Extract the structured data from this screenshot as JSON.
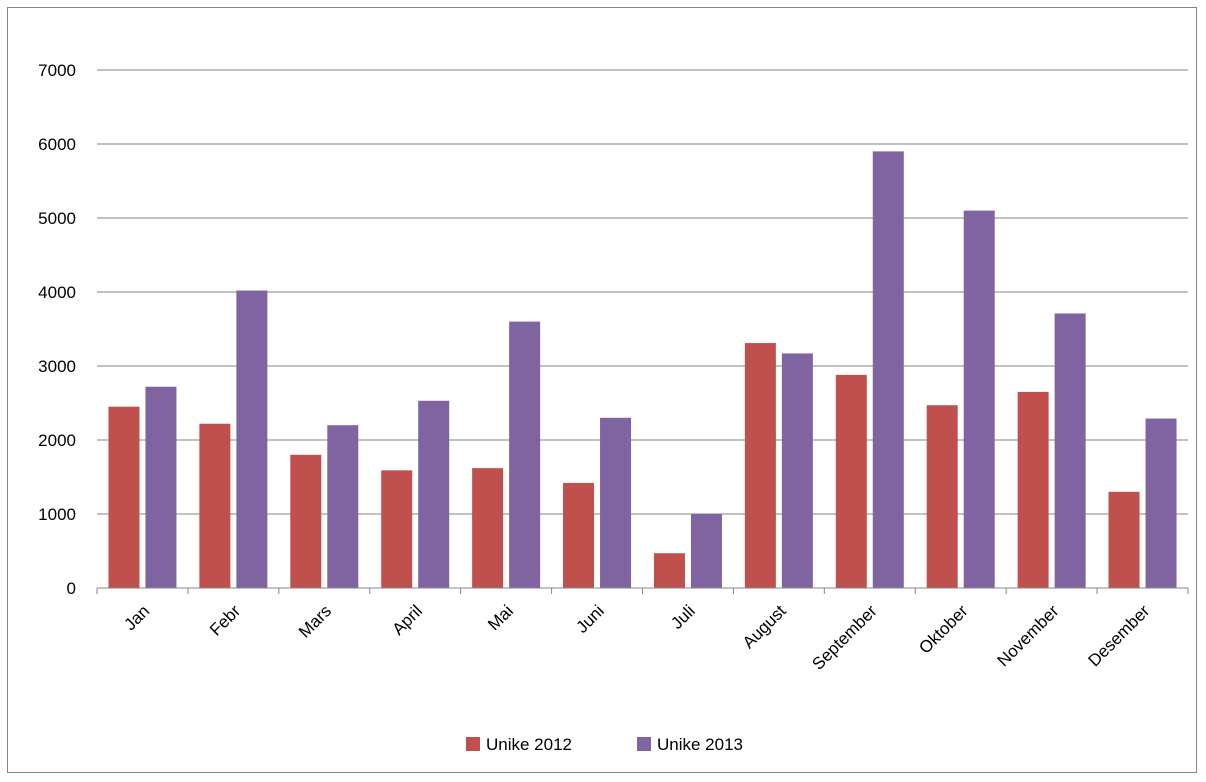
{
  "chart_data": {
    "type": "bar",
    "title": "",
    "xlabel": "",
    "ylabel": "",
    "categories": [
      "Jan",
      "Febr",
      "Mars",
      "April",
      "Mai",
      "Juni",
      "Juli",
      "August",
      "September",
      "Oktober",
      "November",
      "Desember"
    ],
    "series": [
      {
        "name": "Unike 2012",
        "color": "#c0504d",
        "values": [
          2450,
          2220,
          1800,
          1590,
          1620,
          1420,
          470,
          3310,
          2880,
          2470,
          2650,
          1300
        ]
      },
      {
        "name": "Unike 2013",
        "color": "#8064a2",
        "values": [
          2720,
          4020,
          2200,
          2530,
          3600,
          2300,
          1000,
          3170,
          5900,
          5100,
          3710,
          2290
        ]
      }
    ],
    "ylim": [
      0,
      7000
    ],
    "yticks": [
      0,
      1000,
      2000,
      3000,
      4000,
      5000,
      6000,
      7000
    ],
    "grid": true,
    "legend_position": "bottom"
  }
}
